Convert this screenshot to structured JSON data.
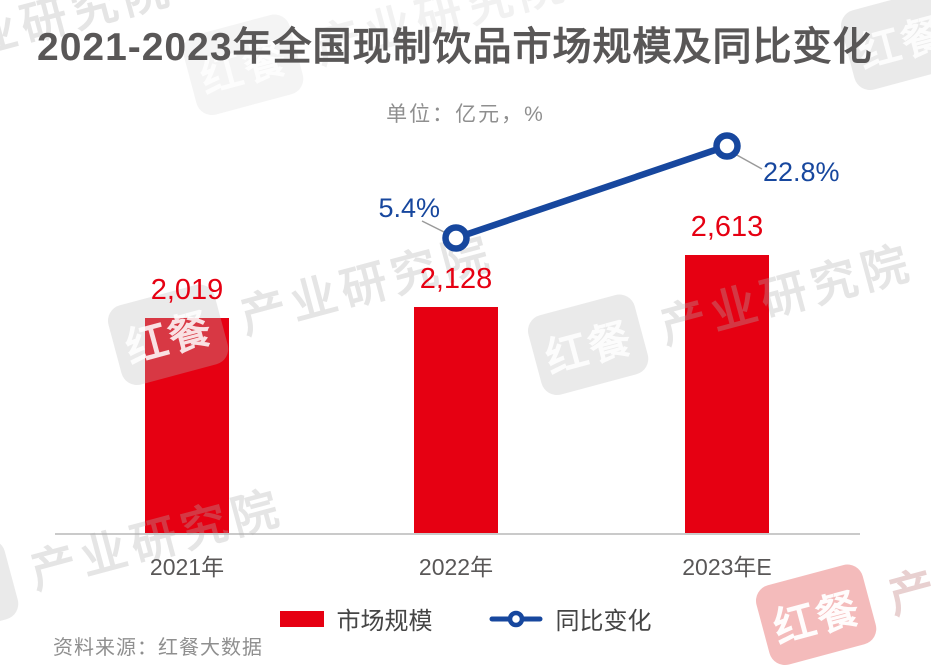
{
  "page": {
    "title": "2021-2023年全国现制饮品市场规模及同比变化",
    "unit_note": "单位：亿元，%",
    "source": "资料来源：红餐大数据"
  },
  "legend": [
    {
      "label": "市场规模",
      "type": "bar",
      "color": "#e60012"
    },
    {
      "label": "同比变化",
      "type": "line",
      "color": "#17479e"
    }
  ],
  "watermark": {
    "logo_text": "红餐",
    "brand_text": "产业研究院"
  },
  "colors": {
    "bar_red": "#e60012",
    "line_blue": "#17479e",
    "title_gray": "#595757",
    "muted_gray": "#8f8f8f",
    "axis_line_gray": "#cacaca"
  },
  "chart_data": {
    "type": "bar",
    "title": "2021-2023年全国现制饮品市场规模及同比变化",
    "subtitle": "单位：亿元，%",
    "source": "资料来源：红餐大数据",
    "categories": [
      "2021年",
      "2022年",
      "2023年E"
    ],
    "series": [
      {
        "name": "市场规模",
        "type": "bar",
        "unit": "亿元",
        "color": "#e60012",
        "values": [
          2019,
          2128,
          2613
        ],
        "labels": [
          "2,019",
          "2,128",
          "2,613"
        ]
      },
      {
        "name": "同比变化",
        "type": "line",
        "unit": "%",
        "color": "#17479e",
        "values": [
          null,
          5.4,
          22.8
        ],
        "labels": [
          null,
          "5.4%",
          "22.8%"
        ]
      }
    ],
    "xlabel": "",
    "ylabel": "",
    "y_axis_visible": false,
    "grid": false,
    "legend_position": "bottom"
  }
}
